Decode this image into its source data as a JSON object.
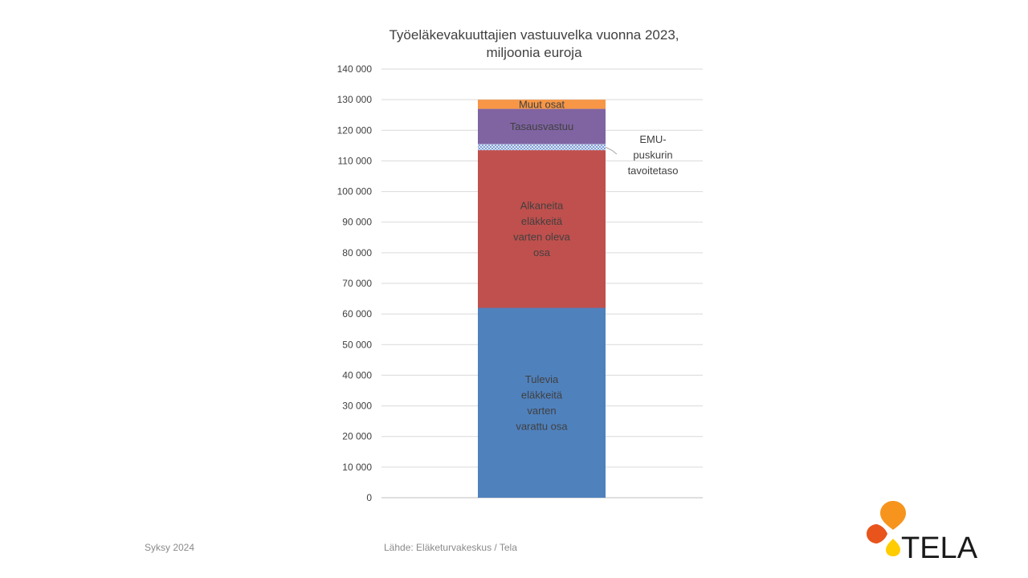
{
  "title_lines": [
    "Työeläkevakuuttajien vastuuvelka vuonna  2023,",
    "miljoonia euroja"
  ],
  "footer": {
    "season": "Syksy 2024",
    "source": "Lähde: Eläketurvakeskus / Tela"
  },
  "logo": {
    "text": "TELA",
    "icon": "tela-drops-logo"
  },
  "chart_data": {
    "type": "bar",
    "stacked": true,
    "categories": [
      ""
    ],
    "ylim": [
      0,
      140000
    ],
    "ytick_step": 10000,
    "ytick_labels": [
      "0",
      "10 000",
      "20 000",
      "30 000",
      "40 000",
      "50 000",
      "60 000",
      "70 000",
      "80 000",
      "90 000",
      "100 000",
      "110 000",
      "120 000",
      "130 000",
      "140 000"
    ],
    "grid": true,
    "legend": "none",
    "series": [
      {
        "name": "Tulevia eläkkeitä varten varattu osa",
        "label_lines": [
          "Tulevia",
          "eläkkeitä",
          "varten",
          "varattu osa"
        ],
        "values": [
          62000
        ],
        "color": "#4f81bd"
      },
      {
        "name": "Alkaneita eläkkeitä varten oleva osa",
        "label_lines": [
          "Alkaneita",
          "eläkkeitä",
          "varten oleva",
          "osa"
        ],
        "values": [
          51500
        ],
        "color": "#c0504d"
      },
      {
        "name": "EMU-puskurin tavoitetaso",
        "label_lines": [
          "EMU-",
          "puskurin",
          "tavoitetaso"
        ],
        "values": [
          2000
        ],
        "color": "#4472c4",
        "pattern": "dotted"
      },
      {
        "name": "Tasausvastuu",
        "label_lines": [
          "Tasausvastuu"
        ],
        "values": [
          11500
        ],
        "color": "#8064a2"
      },
      {
        "name": "Muut osat",
        "label_lines": [
          "Muut osat"
        ],
        "values": [
          3000
        ],
        "color": "#f79646"
      }
    ]
  }
}
